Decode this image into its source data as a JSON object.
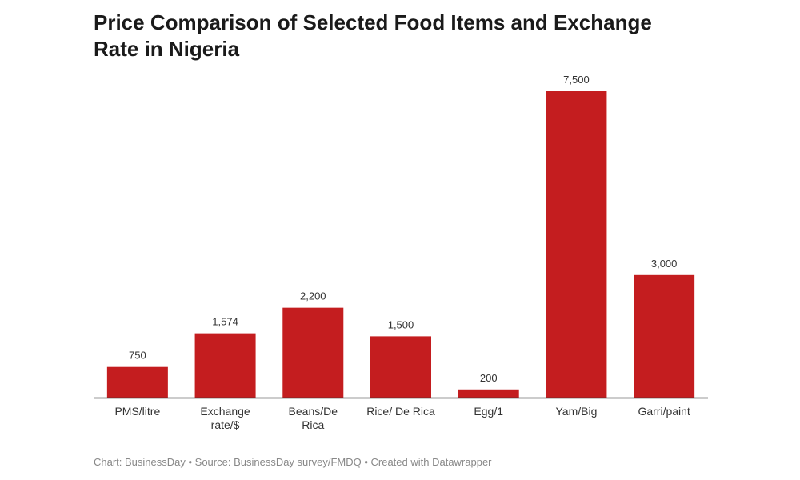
{
  "chart_data": {
    "type": "bar",
    "title": "Price Comparison of Selected Food Items and Exchange Rate in Nigeria",
    "categories": [
      "PMS/litre",
      "Exchange rate/$",
      "Beans/De Rica",
      "Rice/ De Rica",
      "Egg/1",
      "Yam/Big",
      "Garri/paint"
    ],
    "category_lines": [
      [
        "PMS/litre"
      ],
      [
        "Exchange",
        "rate/$"
      ],
      [
        "Beans/De",
        "Rica"
      ],
      [
        "Rice/ De Rica"
      ],
      [
        "Egg/1"
      ],
      [
        "Yam/Big"
      ],
      [
        "Garri/paint"
      ]
    ],
    "values": [
      750,
      1574,
      2200,
      1500,
      200,
      7500,
      3000
    ],
    "value_labels": [
      "750",
      "1,574",
      "2,200",
      "1,500",
      "200",
      "7,500",
      "3,000"
    ],
    "xlabel": "",
    "ylabel": "",
    "ylim": [
      0,
      7500
    ],
    "grid": false,
    "bar_color": "#c41d1f",
    "axis_color": "#333333"
  },
  "footer": {
    "text": "Chart: BusinessDay • Source: BusinessDay survey/FMDQ • Created with Datawrapper"
  }
}
